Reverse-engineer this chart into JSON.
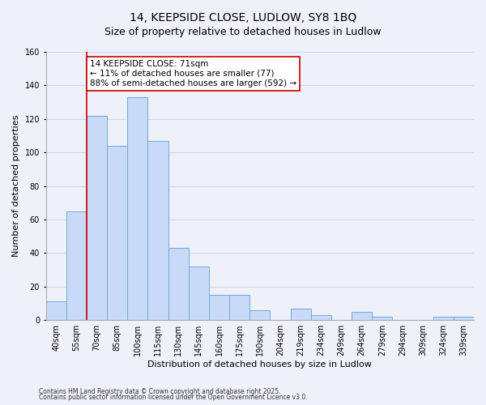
{
  "title": "14, KEEPSIDE CLOSE, LUDLOW, SY8 1BQ",
  "subtitle": "Size of property relative to detached houses in Ludlow",
  "xlabel": "Distribution of detached houses by size in Ludlow",
  "ylabel": "Number of detached properties",
  "bar_labels": [
    "40sqm",
    "55sqm",
    "70sqm",
    "85sqm",
    "100sqm",
    "115sqm",
    "130sqm",
    "145sqm",
    "160sqm",
    "175sqm",
    "190sqm",
    "204sqm",
    "219sqm",
    "234sqm",
    "249sqm",
    "264sqm",
    "279sqm",
    "294sqm",
    "309sqm",
    "324sqm",
    "339sqm"
  ],
  "bar_values": [
    11,
    65,
    122,
    104,
    133,
    107,
    43,
    32,
    15,
    15,
    6,
    0,
    7,
    3,
    0,
    5,
    2,
    0,
    0,
    2,
    2
  ],
  "bar_color": "#c9daf8",
  "bar_edge_color": "#6fa8dc",
  "vline_color": "#cc0000",
  "vline_bar_index": 2,
  "ylim": [
    0,
    160
  ],
  "yticks": [
    0,
    20,
    40,
    60,
    80,
    100,
    120,
    140,
    160
  ],
  "annotation_text": "14 KEEPSIDE CLOSE: 71sqm\n← 11% of detached houses are smaller (77)\n88% of semi-detached houses are larger (592) →",
  "annotation_box_color": "#ffffff",
  "annotation_box_edge": "#cc0000",
  "footer1": "Contains HM Land Registry data © Crown copyright and database right 2025.",
  "footer2": "Contains public sector information licensed under the Open Government Licence v3.0.",
  "bg_color": "#eef1fa",
  "grid_color": "#d0d8e8",
  "title_fontsize": 10,
  "axis_label_fontsize": 8,
  "tick_fontsize": 7,
  "annotation_fontsize": 7.5,
  "footer_fontsize": 5.5
}
